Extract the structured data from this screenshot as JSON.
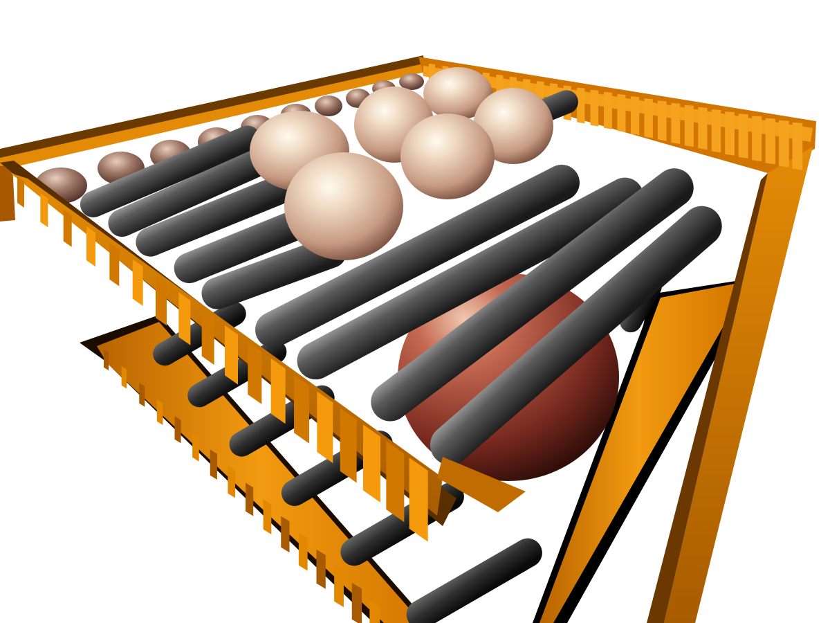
{
  "scene": {
    "background": "#ffffff",
    "colors": {
      "frame_light": "#f49a0c",
      "frame_mid": "#d97c00",
      "frame_dark": "#8a4a00",
      "frame_shadow": "#3a1c00",
      "rod_light": "#8a8a8a",
      "rod_mid": "#4a4a4a",
      "rod_dark": "#1c1c1c",
      "egg_highlight": "#fff6e6",
      "egg_mid": "#e2c0a8",
      "egg_dark": "#7a5040",
      "red_sphere_mid": "#b8523e",
      "red_sphere_dark": "#3a1410"
    }
  }
}
